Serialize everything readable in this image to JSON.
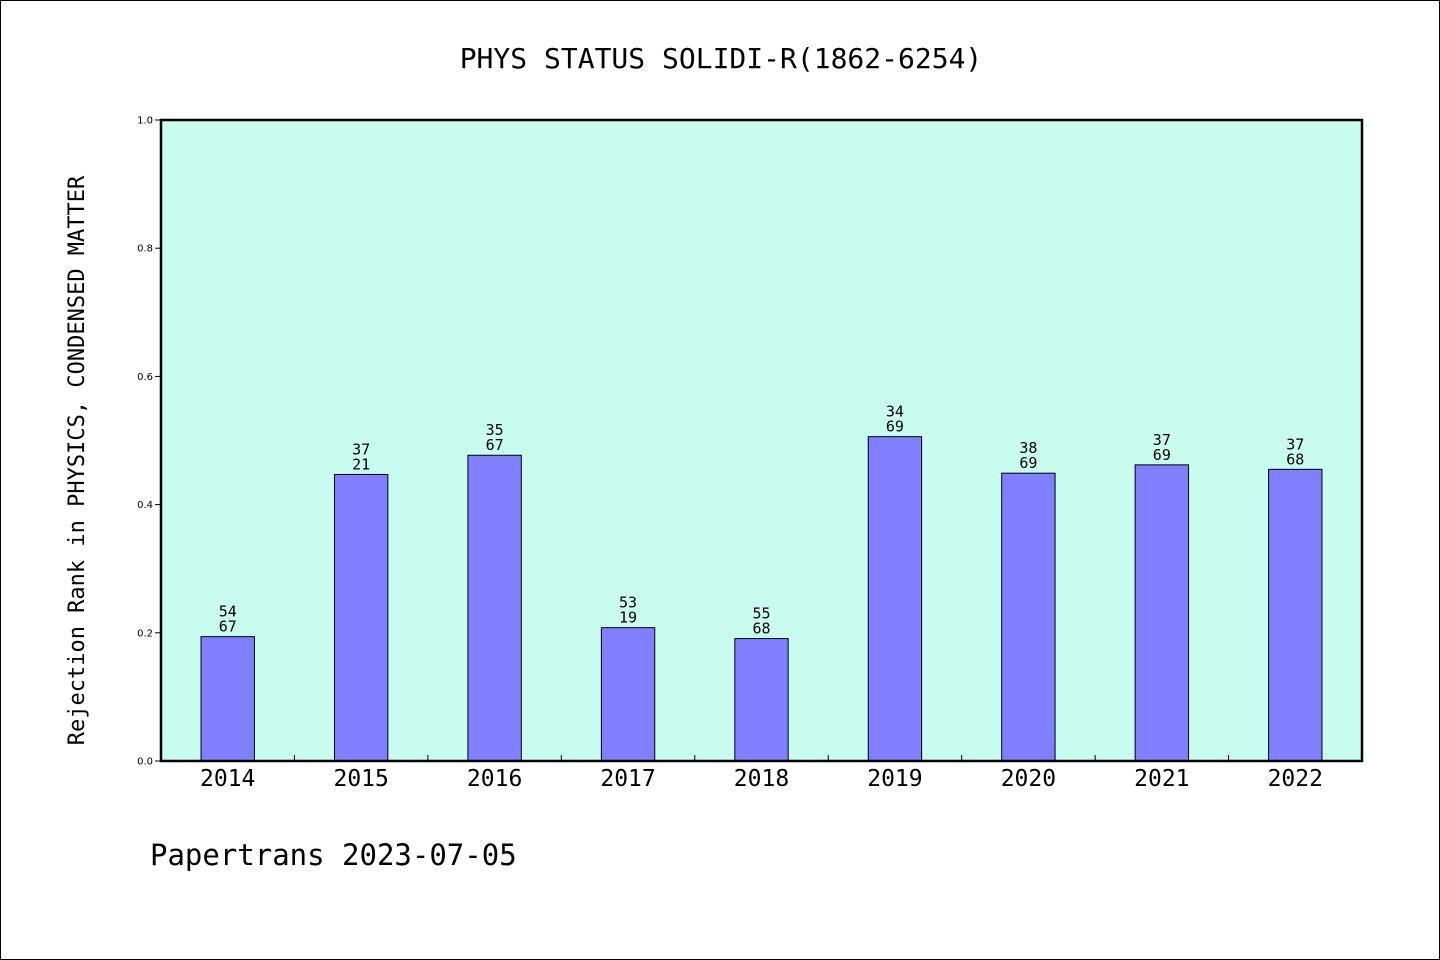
{
  "footer": "Papertrans 2023-07-05",
  "colors": {
    "plot_bg": "#c8fcef",
    "bar_fill": "#8080ff",
    "bar_stroke": "#000000"
  },
  "chart_data": {
    "type": "bar",
    "title": "PHYS STATUS SOLIDI-R(1862-6254)",
    "ylabel": "Rejection Rank in PHYSICS, CONDENSED MATTER",
    "xlabel": "",
    "ylim": [
      0,
      1.0
    ],
    "yticks": [
      "0.0",
      "0.2",
      "0.4",
      "0.6",
      "0.8",
      "1.0"
    ],
    "grid": false,
    "categories": [
      "2014",
      "2015",
      "2016",
      "2017",
      "2018",
      "2019",
      "2020",
      "2021",
      "2022"
    ],
    "values": [
      0.194,
      0.447,
      0.477,
      0.208,
      0.191,
      0.506,
      0.449,
      0.462,
      0.455
    ],
    "labels": [
      [
        "54",
        "67"
      ],
      [
        "37",
        "21"
      ],
      [
        "35",
        "67"
      ],
      [
        "53",
        "19"
      ],
      [
        "55",
        "68"
      ],
      [
        "34",
        "69"
      ],
      [
        "38",
        "69"
      ],
      [
        "37",
        "69"
      ],
      [
        "37",
        "68"
      ]
    ]
  }
}
